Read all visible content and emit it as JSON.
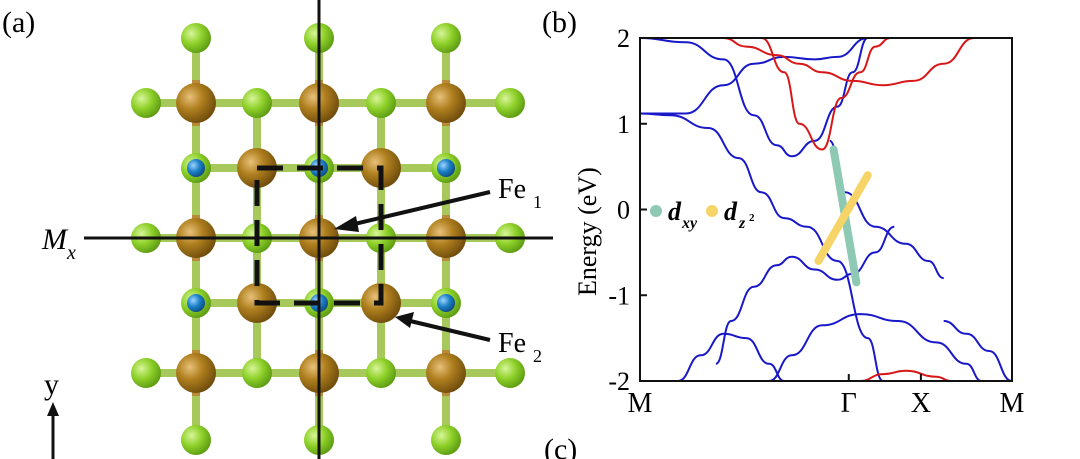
{
  "panel_a": {
    "label": "(a)",
    "mirror_label": "M",
    "mirror_sub": "x",
    "fe1_label": "Fe",
    "fe1_sub": "1",
    "fe2_label": "Fe",
    "fe2_sub": "2",
    "axis_y_label": "y",
    "colors": {
      "fe_atom": "#a3741c",
      "green_atom": "#8fd12a",
      "blue_atom": "#1e82c8",
      "bond": "#9bc43a"
    }
  },
  "panel_b": {
    "label": "(b)",
    "legend": {
      "item1_main": "d",
      "item1_sub": "xy",
      "item1_color": "#8ec9b4",
      "item2_main": "d",
      "item2_sub": "z",
      "item2_sup": "2",
      "item2_color": "#f7d468"
    },
    "colors": {
      "band_blue": "#1818c8",
      "band_red": "#d81818"
    }
  },
  "panel_c": {
    "label": "(c)"
  },
  "chart_data": {
    "type": "line",
    "title": "",
    "xlabel": "",
    "ylabel": "Energy (eV)",
    "x_ticks": [
      "M",
      "Γ",
      "X",
      "M"
    ],
    "y_ticks": [
      "2",
      "1",
      "0",
      "-1",
      "-2"
    ],
    "ylim": [
      -2,
      2
    ],
    "grid": false,
    "legend_position": "left",
    "series": [
      {
        "color": "#1818c8",
        "values": [
          [
            0,
            1.12
          ],
          [
            0.4,
            1.1
          ],
          [
            0.9,
            0.95
          ],
          [
            1.3,
            0.6
          ],
          [
            1.6,
            0.2
          ],
          [
            1.9,
            -0.1
          ],
          [
            2.2,
            -0.2
          ],
          [
            2.6,
            -0.6
          ],
          [
            3.0,
            -1.5
          ],
          [
            3.2,
            -2.0
          ]
        ]
      },
      {
        "color": "#1818c8",
        "values": [
          [
            0,
            1.12
          ],
          [
            0.6,
            1.12
          ],
          [
            1.1,
            1.45
          ],
          [
            1.5,
            1.7
          ],
          [
            1.9,
            1.78
          ],
          [
            2.3,
            1.75
          ],
          [
            2.6,
            1.78
          ],
          [
            3.0,
            2.0
          ]
        ]
      },
      {
        "color": "#1818c8",
        "values": [
          [
            0,
            2.0
          ],
          [
            0.6,
            1.95
          ],
          [
            1.1,
            1.75
          ],
          [
            1.5,
            1.1
          ],
          [
            1.8,
            0.75
          ],
          [
            2.0,
            0.62
          ],
          [
            2.3,
            0.8
          ],
          [
            2.6,
            1.2
          ],
          [
            2.8,
            1.6
          ],
          [
            3.0,
            2.0
          ]
        ]
      },
      {
        "color": "#1818c8",
        "values": [
          [
            1.0,
            -1.8
          ],
          [
            1.2,
            -1.3
          ],
          [
            1.5,
            -0.9
          ],
          [
            1.8,
            -0.65
          ],
          [
            2.0,
            -0.55
          ],
          [
            2.3,
            -0.7
          ],
          [
            2.6,
            -0.82
          ],
          [
            2.8,
            -0.75
          ],
          [
            3.1,
            -0.5
          ],
          [
            3.35,
            -0.2
          ]
        ]
      },
      {
        "color": "#1818c8",
        "values": [
          [
            2.5,
            0.8
          ],
          [
            2.7,
            0.2
          ],
          [
            3.1,
            -0.2
          ],
          [
            3.5,
            -0.4
          ],
          [
            3.8,
            -0.6
          ],
          [
            4.0,
            -0.8
          ]
        ]
      },
      {
        "color": "#1818c8",
        "values": [
          [
            4.0,
            -1.3
          ],
          [
            4.3,
            -1.45
          ],
          [
            4.6,
            -1.65
          ],
          [
            4.9,
            -2.0
          ]
        ]
      },
      {
        "color": "#1818c8",
        "values": [
          [
            0.5,
            -2.0
          ],
          [
            0.8,
            -1.7
          ],
          [
            1.1,
            -1.45
          ],
          [
            1.4,
            -1.5
          ],
          [
            1.7,
            -1.8
          ],
          [
            1.9,
            -2.0
          ]
        ]
      },
      {
        "color": "#1818c8",
        "values": [
          [
            1.7,
            -2.0
          ],
          [
            2.0,
            -1.7
          ],
          [
            2.4,
            -1.35
          ],
          [
            2.9,
            -1.22
          ],
          [
            3.4,
            -1.3
          ],
          [
            3.9,
            -1.55
          ],
          [
            4.3,
            -1.8
          ],
          [
            4.5,
            -2.0
          ]
        ]
      },
      {
        "color": "#d81818",
        "values": [
          [
            1.6,
            2.0
          ],
          [
            1.9,
            1.6
          ],
          [
            2.1,
            1.0
          ],
          [
            2.4,
            0.7
          ],
          [
            2.65,
            1.3
          ],
          [
            2.9,
            1.6
          ],
          [
            3.1,
            1.9
          ],
          [
            3.3,
            2.0
          ]
        ]
      },
      {
        "color": "#d81818",
        "values": [
          [
            1.1,
            2.0
          ],
          [
            1.4,
            1.9
          ],
          [
            1.8,
            1.8
          ],
          [
            2.1,
            1.7
          ],
          [
            2.4,
            1.6
          ],
          [
            2.8,
            1.5
          ],
          [
            3.2,
            1.45
          ],
          [
            3.6,
            1.5
          ],
          [
            4.0,
            1.7
          ],
          [
            4.4,
            2.0
          ]
        ]
      },
      {
        "color": "#d81818",
        "values": [
          [
            2.9,
            -2.0
          ],
          [
            3.2,
            -1.92
          ],
          [
            3.5,
            -1.88
          ],
          [
            3.9,
            -1.95
          ],
          [
            4.1,
            -2.0
          ]
        ]
      }
    ],
    "highlight": [
      {
        "orbital": "dxy",
        "color": "#8ec9b4",
        "from": [
          2.55,
          0.7
        ],
        "to": [
          2.85,
          -0.85
        ]
      },
      {
        "orbital": "dz2",
        "color": "#f7d468",
        "from": [
          2.35,
          -0.6
        ],
        "to": [
          3.0,
          0.4
        ]
      }
    ]
  }
}
